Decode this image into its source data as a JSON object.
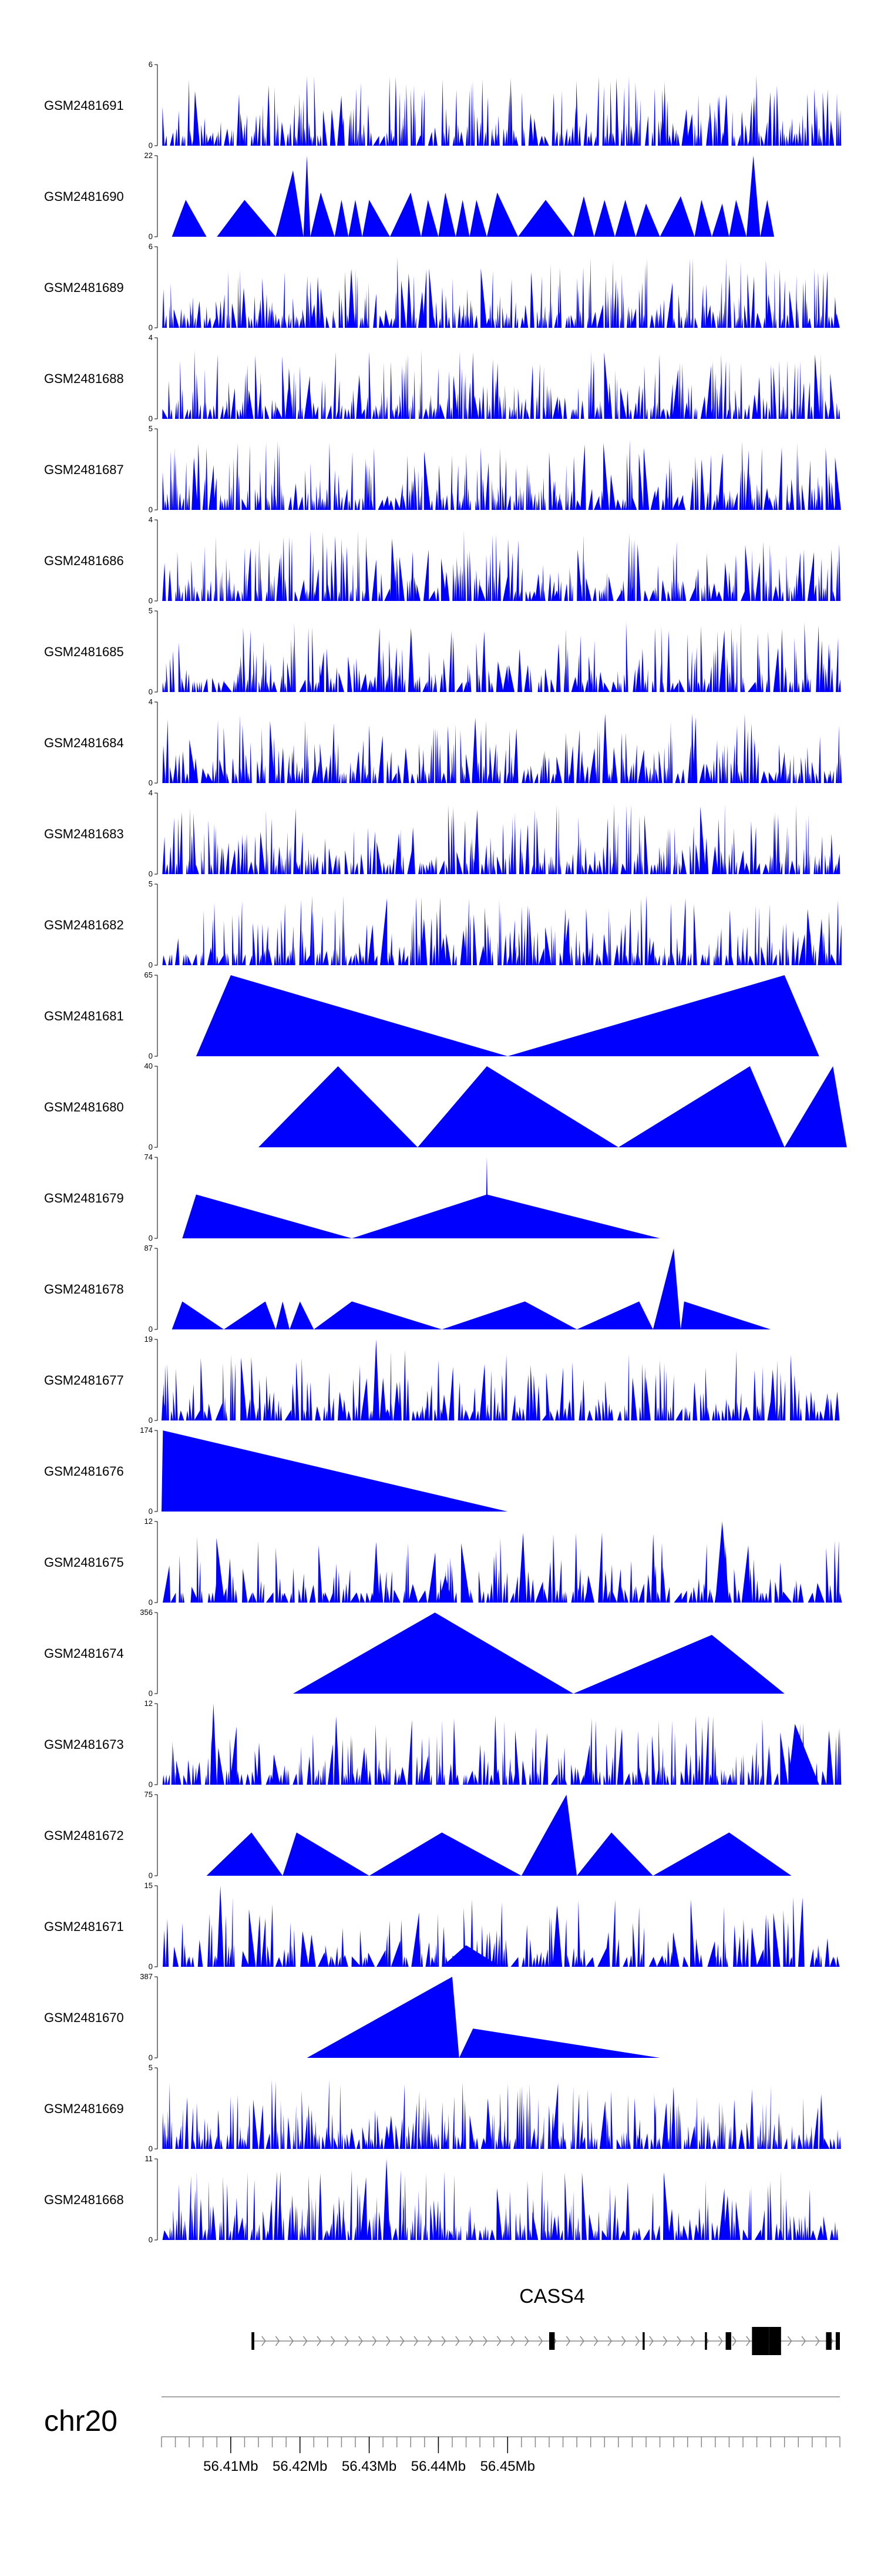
{
  "chart_data": {
    "type": "area",
    "title": "",
    "chromosome": "chr20",
    "xrange": [
      56400000,
      56498000
    ],
    "colors": {
      "coverage": "#0000ff",
      "gene": "#000000",
      "axis": "#888888"
    },
    "tracks": [
      {
        "name": "GSM2481691",
        "ymax": "6",
        "ymin": "0",
        "peak": 6,
        "style": "dense",
        "density": 110,
        "seed": 11,
        "peaks": []
      },
      {
        "name": "GSM2481690",
        "ymax": "22",
        "ymin": "0",
        "peak": 22,
        "style": "sparse",
        "peaks": [
          [
            56401500,
            56403500,
            56406500,
            10
          ],
          [
            56408000,
            56412000,
            56416500,
            10
          ],
          [
            56416500,
            56419000,
            56420500,
            18
          ],
          [
            56420500,
            56421000,
            56421500,
            22
          ],
          [
            56421500,
            56423000,
            56425000,
            12
          ],
          [
            56425000,
            56426000,
            56427000,
            10
          ],
          [
            56427000,
            56428000,
            56429000,
            10
          ],
          [
            56429000,
            56430000,
            56433000,
            10
          ],
          [
            56433000,
            56436000,
            56437500,
            12
          ],
          [
            56437500,
            56438500,
            56440000,
            10
          ],
          [
            56440000,
            56441000,
            56442500,
            12
          ],
          [
            56442500,
            56443500,
            56444500,
            10
          ],
          [
            56444500,
            56445500,
            56447000,
            10
          ],
          [
            56447000,
            56448500,
            56451500,
            12
          ],
          [
            56451500,
            56455500,
            56459500,
            10
          ],
          [
            56459500,
            56461000,
            56462500,
            11
          ],
          [
            56462500,
            56464000,
            56465500,
            10
          ],
          [
            56465500,
            56467000,
            56468500,
            10
          ],
          [
            56468500,
            56470000,
            56472000,
            9
          ],
          [
            56472000,
            56475000,
            56477000,
            11
          ],
          [
            56477000,
            56478000,
            56479500,
            10
          ],
          [
            56479500,
            56481000,
            56482000,
            9
          ],
          [
            56482000,
            56483000,
            56484500,
            10
          ],
          [
            56484500,
            56485500,
            56486500,
            22
          ],
          [
            56486500,
            56487500,
            56488500,
            10
          ]
        ]
      },
      {
        "name": "GSM2481689",
        "ymax": "6",
        "ymin": "0",
        "peak": 6,
        "style": "dense",
        "density": 120,
        "seed": 23,
        "peaks": []
      },
      {
        "name": "GSM2481688",
        "ymax": "4",
        "ymin": "0",
        "peak": 4,
        "style": "dense",
        "density": 120,
        "seed": 37,
        "peaks": []
      },
      {
        "name": "GSM2481687",
        "ymax": "5",
        "ymin": "0",
        "peak": 5,
        "style": "dense",
        "density": 120,
        "seed": 41,
        "peaks": []
      },
      {
        "name": "GSM2481686",
        "ymax": "4",
        "ymin": "0",
        "peak": 4,
        "style": "dense",
        "density": 120,
        "seed": 53,
        "peaks": []
      },
      {
        "name": "GSM2481685",
        "ymax": "5",
        "ymin": "0",
        "peak": 5,
        "style": "dense",
        "density": 100,
        "seed": 67,
        "peaks": []
      },
      {
        "name": "GSM2481684",
        "ymax": "4",
        "ymin": "0",
        "peak": 4,
        "style": "dense",
        "density": 110,
        "seed": 71,
        "peaks": []
      },
      {
        "name": "GSM2481683",
        "ymax": "4",
        "ymin": "0",
        "peak": 4,
        "style": "dense",
        "density": 120,
        "seed": 83,
        "peaks": []
      },
      {
        "name": "GSM2481682",
        "ymax": "5",
        "ymin": "0",
        "peak": 5,
        "style": "dense",
        "density": 110,
        "seed": 97,
        "peaks": []
      },
      {
        "name": "GSM2481681",
        "ymax": "65",
        "ymin": "0",
        "peak": 65,
        "style": "sparse",
        "peaks": [
          [
            56405000,
            56410000,
            56450000,
            65
          ],
          [
            56450000,
            56490000,
            56495000,
            65
          ]
        ]
      },
      {
        "name": "GSM2481680",
        "ymax": "40",
        "ymin": "0",
        "peak": 40,
        "style": "sparse",
        "peaks": [
          [
            56414000,
            56425500,
            56437000,
            40
          ],
          [
            56437000,
            56447000,
            56466000,
            40
          ],
          [
            56466000,
            56485000,
            56490000,
            40
          ],
          [
            56490000,
            56497000,
            56499000,
            40
          ]
        ]
      },
      {
        "name": "GSM2481679",
        "ymax": "74",
        "ymin": "0",
        "peak": 74,
        "style": "sparse",
        "peaks": [
          [
            56403000,
            56405000,
            56427500,
            40
          ],
          [
            56427500,
            56447000,
            56472000,
            40
          ],
          [
            56446800,
            56447000,
            56447200,
            74
          ]
        ]
      },
      {
        "name": "GSM2481678",
        "ymax": "87",
        "ymin": "0",
        "peak": 87,
        "style": "sparse",
        "peaks": [
          [
            56401500,
            56403000,
            56409000,
            30
          ],
          [
            56409000,
            56415000,
            56416500,
            30
          ],
          [
            56416500,
            56417500,
            56418500,
            30
          ],
          [
            56418500,
            56420000,
            56422000,
            30
          ],
          [
            56422000,
            56427500,
            56440500,
            30
          ],
          [
            56440500,
            56452500,
            56460000,
            30
          ],
          [
            56460000,
            56469000,
            56471000,
            30
          ],
          [
            56471000,
            56474000,
            56475000,
            87
          ],
          [
            56475000,
            56475500,
            56488000,
            30
          ]
        ]
      },
      {
        "name": "GSM2481677",
        "ymax": "19",
        "ymin": "0",
        "peak": 19,
        "style": "dense",
        "density": 90,
        "seed": 101,
        "peaks": [
          [
            56430500,
            56431000,
            56431500,
            19
          ],
          [
            56431500,
            56432000,
            56432500,
            10
          ],
          [
            56433500,
            56434000,
            56434500,
            9
          ],
          [
            56487800,
            56488300,
            56488800,
            12
          ],
          [
            56400000,
            56400200,
            56400800,
            6
          ]
        ]
      },
      {
        "name": "GSM2481676",
        "ymax": "174",
        "ymin": "0",
        "peak": 174,
        "style": "sparse",
        "peaks": [
          [
            56400000,
            56400200,
            56450000,
            174
          ]
        ]
      },
      {
        "name": "GSM2481675",
        "ymax": "12",
        "ymin": "0",
        "peak": 12,
        "style": "dense",
        "density": 80,
        "seed": 113,
        "peaks": [
          [
            56430500,
            56431000,
            56431500,
            9
          ],
          [
            56440000,
            56441000,
            56442000,
            4
          ],
          [
            56480000,
            56481000,
            56482000,
            12
          ]
        ]
      },
      {
        "name": "GSM2481674",
        "ymax": "356",
        "ymin": "0",
        "peak": 356,
        "style": "sparse",
        "peaks": [
          [
            56419000,
            56439500,
            56459500,
            356
          ],
          [
            56459500,
            56479500,
            56490000,
            258
          ]
        ]
      },
      {
        "name": "GSM2481673",
        "ymax": "12",
        "ymin": "0",
        "peak": 12,
        "style": "dense",
        "density": 100,
        "seed": 127,
        "peaks": [
          [
            56407000,
            56407500,
            56408000,
            12
          ],
          [
            56490500,
            56491500,
            56495000,
            9
          ]
        ]
      },
      {
        "name": "GSM2481672",
        "ymax": "75",
        "ymin": "0",
        "peak": 75,
        "style": "sparse",
        "peaks": [
          [
            56406500,
            56413000,
            56417500,
            40
          ],
          [
            56417500,
            56419500,
            56430000,
            40
          ],
          [
            56430000,
            56440500,
            56452000,
            40
          ],
          [
            56452000,
            56458500,
            56460000,
            75
          ],
          [
            56460000,
            56465000,
            56471000,
            40
          ],
          [
            56471000,
            56482000,
            56491000,
            40
          ]
        ]
      },
      {
        "name": "GSM2481671",
        "ymax": "15",
        "ymin": "0",
        "peak": 15,
        "style": "dense",
        "density": 80,
        "seed": 131,
        "peaks": [
          [
            56408000,
            56408500,
            56409000,
            15
          ],
          [
            56440500,
            56444000,
            56449000,
            4
          ]
        ]
      },
      {
        "name": "GSM2481670",
        "ymax": "387",
        "ymin": "0",
        "peak": 387,
        "style": "sparse",
        "peaks": [
          [
            56421000,
            56442000,
            56443000,
            387
          ],
          [
            56443000,
            56445000,
            56472000,
            140
          ]
        ]
      },
      {
        "name": "GSM2481669",
        "ymax": "5",
        "ymin": "0",
        "peak": 5,
        "style": "dense",
        "density": 120,
        "seed": 149,
        "peaks": []
      },
      {
        "name": "GSM2481668",
        "ymax": "11",
        "ymin": "0",
        "peak": 11,
        "style": "dense",
        "density": 110,
        "seed": 151,
        "peaks": [
          [
            56432000,
            56432500,
            56433000,
            11
          ]
        ]
      }
    ],
    "gene": {
      "name": "CASS4",
      "strand": "+",
      "span": [
        56413000,
        56498000
      ],
      "exons": [
        [
          56413000,
          56413400
        ],
        [
          56456000,
          56456800
        ],
        [
          56469500,
          56469800
        ],
        [
          56478500,
          56478800
        ],
        [
          56481500,
          56482300
        ],
        [
          56485300,
          56487800
        ],
        [
          56487800,
          56489500
        ],
        [
          56496000,
          56496800
        ],
        [
          56497400,
          56498000
        ]
      ]
    },
    "axis": {
      "ticks": [
        {
          "pos": 56410000,
          "label": "56.41Mb"
        },
        {
          "pos": 56420000,
          "label": "56.42Mb"
        },
        {
          "pos": 56430000,
          "label": "56.43Mb"
        },
        {
          "pos": 56440000,
          "label": "56.44Mb"
        },
        {
          "pos": 56450000,
          "label": "56.45Mb"
        }
      ],
      "minor_step": 2000
    }
  }
}
